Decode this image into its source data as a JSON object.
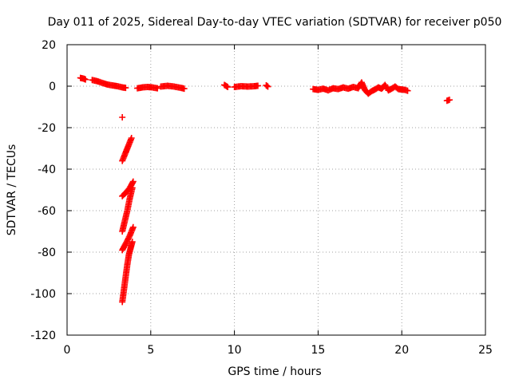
{
  "chart_data": {
    "type": "scatter",
    "title": "Day 011 of 2025, Sidereal Day-to-day VTEC variation (SDTVAR) for receiver p050",
    "xlabel": "GPS time / hours",
    "ylabel": "SDTVAR / TECUs",
    "xlim": [
      0,
      25
    ],
    "ylim": [
      -120,
      20
    ],
    "x_ticks": [
      0,
      5,
      10,
      15,
      20,
      25
    ],
    "y_ticks": [
      20,
      0,
      -20,
      -40,
      -60,
      -80,
      -100,
      -120
    ],
    "grid": true,
    "marker": "plus",
    "series_color": "#ff0000",
    "series": [
      {
        "name": "SDTVAR",
        "segments": [
          [
            [
              0.8,
              4
            ],
            [
              1.0,
              3.6
            ],
            [
              1.1,
              3.2
            ]
          ],
          [
            [
              1.5,
              3
            ],
            [
              1.8,
              2.4
            ],
            [
              2.1,
              1.6
            ],
            [
              2.4,
              0.8
            ],
            [
              2.7,
              0.4
            ],
            [
              3.0,
              0
            ],
            [
              3.3,
              -0.6
            ],
            [
              3.5,
              -0.8
            ]
          ],
          [
            [
              3.3,
              -15
            ]
          ],
          [
            [
              3.3,
              -36
            ],
            [
              3.5,
              -32
            ],
            [
              3.65,
              -29
            ],
            [
              3.85,
              -25
            ]
          ],
          [
            [
              3.3,
              -53
            ],
            [
              3.55,
              -51
            ],
            [
              3.75,
              -49
            ],
            [
              3.95,
              -46
            ]
          ],
          [
            [
              3.3,
              -70
            ],
            [
              3.45,
              -65
            ],
            [
              3.6,
              -60
            ],
            [
              3.75,
              -54
            ],
            [
              3.9,
              -49
            ]
          ],
          [
            [
              3.3,
              -79
            ],
            [
              3.5,
              -76
            ],
            [
              3.75,
              -72
            ],
            [
              3.95,
              -68
            ]
          ],
          [
            [
              3.3,
              -104
            ],
            [
              3.4,
              -98
            ],
            [
              3.5,
              -92
            ],
            [
              3.6,
              -86
            ],
            [
              3.7,
              -81
            ],
            [
              3.8,
              -78
            ],
            [
              3.9,
              -75
            ]
          ],
          [
            [
              4.2,
              -1
            ],
            [
              4.5,
              -0.6
            ],
            [
              4.8,
              -0.4
            ],
            [
              5.1,
              -0.6
            ],
            [
              5.4,
              -1
            ]
          ],
          [
            [
              5.6,
              -0.2
            ],
            [
              6.0,
              0.2
            ],
            [
              6.4,
              -0.2
            ],
            [
              6.8,
              -0.8
            ],
            [
              7.0,
              -1.2
            ]
          ],
          [
            [
              9.4,
              0.6
            ],
            [
              9.6,
              -0.4
            ]
          ],
          [
            [
              10.0,
              -0.4
            ],
            [
              10.4,
              0
            ],
            [
              10.8,
              -0.2
            ],
            [
              11.2,
              0
            ],
            [
              11.4,
              0.2
            ]
          ],
          [
            [
              11.9,
              0.4
            ],
            [
              12.0,
              -0.2
            ]
          ],
          [
            [
              14.7,
              -1.4
            ],
            [
              15.0,
              -1.8
            ],
            [
              15.3,
              -1.2
            ],
            [
              15.6,
              -2
            ],
            [
              15.9,
              -1
            ],
            [
              16.2,
              -1.4
            ],
            [
              16.5,
              -0.6
            ],
            [
              16.8,
              -1.2
            ],
            [
              17.1,
              -0.4
            ],
            [
              17.4,
              -1
            ],
            [
              17.6,
              1.8
            ],
            [
              17.8,
              -1.8
            ],
            [
              18.0,
              -3.6
            ],
            [
              18.2,
              -2.4
            ],
            [
              18.4,
              -1.6
            ],
            [
              18.6,
              -0.6
            ],
            [
              18.8,
              -1.2
            ],
            [
              19.0,
              0.6
            ],
            [
              19.2,
              -2
            ],
            [
              19.4,
              -1.2
            ],
            [
              19.6,
              -0.2
            ],
            [
              19.8,
              -1.4
            ],
            [
              20.0,
              -1.6
            ],
            [
              20.2,
              -1.8
            ],
            [
              20.35,
              -2.2
            ]
          ],
          [
            [
              22.7,
              -7
            ],
            [
              22.85,
              -6.6
            ]
          ]
        ]
      }
    ]
  }
}
